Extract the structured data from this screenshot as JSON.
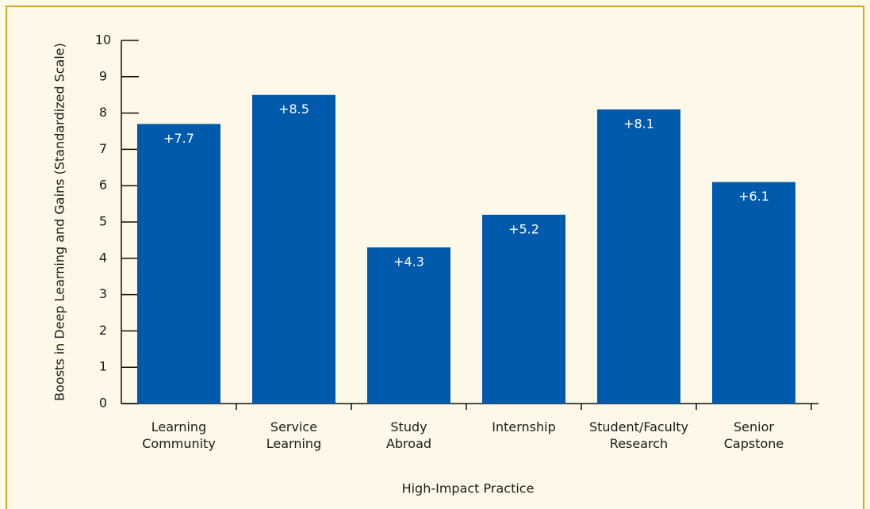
{
  "chart_data": {
    "type": "bar",
    "categories": [
      "Learning\nCommunity",
      "Service\nLearning",
      "Study\nAbroad",
      "Internship",
      "Student/Faculty\nResearch",
      "Senior\nCapstone"
    ],
    "values": [
      7.7,
      8.5,
      4.3,
      5.2,
      8.1,
      6.1
    ],
    "value_labels": [
      "+7.7",
      "+8.5",
      "+4.3",
      "+5.2",
      "+8.1",
      "+6.1"
    ],
    "color": "#005aab",
    "xlabel": "High-Impact Practice",
    "ylabel": "Boosts in Deep Learning and Gains (Standardized Scale)",
    "ylim": [
      0,
      10
    ],
    "yticks": [
      0,
      1,
      2,
      3,
      4,
      5,
      6,
      7,
      8,
      9,
      10
    ],
    "grid": false
  }
}
